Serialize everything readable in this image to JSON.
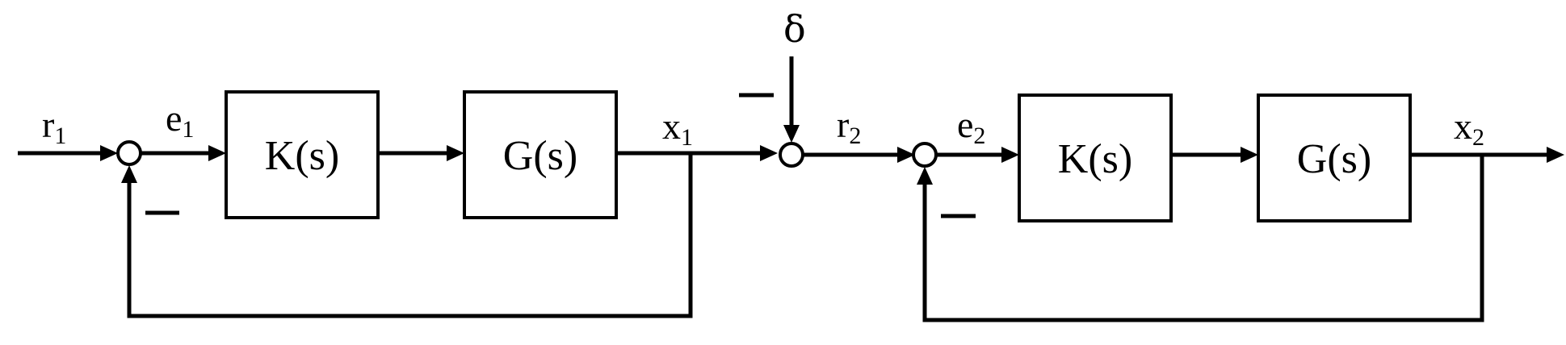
{
  "diagram": {
    "loops": [
      {
        "input": {
          "base": "r",
          "sub": "1"
        },
        "error": {
          "base": "e",
          "sub": "1"
        },
        "controller": "K(s)",
        "plant": "G(s)",
        "output": {
          "base": "x",
          "sub": "1"
        },
        "feedback_sign": "−"
      },
      {
        "input": {
          "base": "r",
          "sub": "2"
        },
        "error": {
          "base": "e",
          "sub": "2"
        },
        "controller": "K(s)",
        "plant": "G(s)",
        "output": {
          "base": "x",
          "sub": "2"
        },
        "feedback_sign": "−"
      }
    ],
    "disturbance": {
      "label": "δ",
      "sign": "−"
    }
  }
}
